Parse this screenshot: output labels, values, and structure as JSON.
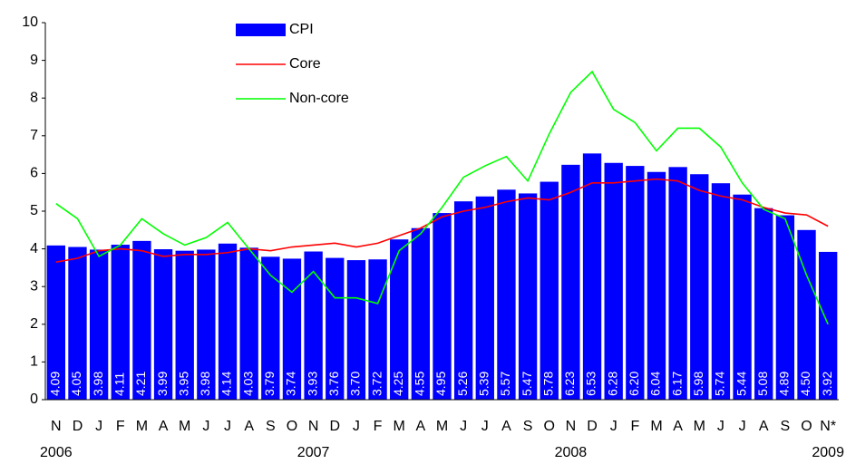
{
  "chart_data": {
    "type": "bar-line",
    "categories": [
      "N",
      "D",
      "J",
      "F",
      "M",
      "A",
      "M",
      "J",
      "J",
      "A",
      "S",
      "O",
      "N",
      "D",
      "J",
      "F",
      "M",
      "A",
      "M",
      "J",
      "J",
      "A",
      "S",
      "O",
      "N",
      "D",
      "J",
      "F",
      "M",
      "A",
      "M",
      "J",
      "J",
      "A",
      "S",
      "O",
      "N*"
    ],
    "year_labels": [
      "2006",
      null,
      null,
      null,
      null,
      null,
      null,
      null,
      null,
      null,
      null,
      null,
      "2007",
      null,
      null,
      null,
      null,
      null,
      null,
      null,
      null,
      null,
      null,
      null,
      "2008",
      null,
      null,
      null,
      null,
      null,
      null,
      null,
      null,
      null,
      null,
      null,
      "2009"
    ],
    "series": [
      {
        "name": "CPI",
        "type": "bar",
        "color": "#0000ff",
        "values": [
          4.09,
          4.05,
          3.98,
          4.11,
          4.21,
          3.99,
          3.95,
          3.98,
          4.14,
          4.03,
          3.79,
          3.74,
          3.93,
          3.76,
          3.7,
          3.72,
          4.25,
          4.55,
          4.95,
          5.26,
          5.39,
          5.57,
          5.47,
          5.78,
          6.23,
          6.53,
          6.28,
          6.2,
          6.04,
          6.17,
          5.98,
          5.74,
          5.44,
          5.08,
          4.89,
          4.5,
          3.92
        ],
        "value_labels": [
          "4.09",
          "4.05",
          "3.98",
          "4.11",
          "4.21",
          "3.99",
          "3.95",
          "3.98",
          "4.14",
          "4.03",
          "3.79",
          "3.74",
          "3.93",
          "3.76",
          "3.70",
          "3.72",
          "4.25",
          "4.55",
          "4.95",
          "5.26",
          "5.39",
          "5.57",
          "5.47",
          "5.78",
          "6.23",
          "6.53",
          "6.28",
          "6.20",
          "6.04",
          "6.17",
          "5.98",
          "5.74",
          "5.44",
          "5.08",
          "4.89",
          "4.50",
          "3.92"
        ]
      },
      {
        "name": "Core",
        "type": "line",
        "color": "#ff0000",
        "values": [
          3.65,
          3.75,
          3.95,
          4.0,
          3.95,
          3.8,
          3.85,
          3.85,
          3.9,
          4.0,
          3.95,
          4.05,
          4.1,
          4.15,
          4.05,
          4.15,
          4.35,
          4.55,
          4.85,
          5.0,
          5.1,
          5.25,
          5.35,
          5.3,
          5.5,
          5.75,
          5.75,
          5.8,
          5.85,
          5.8,
          5.55,
          5.4,
          5.3,
          5.1,
          4.95,
          4.9,
          4.6
        ]
      },
      {
        "name": "Non-core",
        "type": "line",
        "color": "#00ff00",
        "values": [
          5.2,
          4.8,
          3.8,
          4.1,
          4.8,
          4.4,
          4.1,
          4.3,
          4.7,
          4.0,
          3.3,
          2.85,
          3.4,
          2.7,
          2.7,
          2.55,
          3.95,
          4.4,
          5.1,
          5.9,
          6.2,
          6.45,
          5.8,
          7.05,
          8.15,
          8.7,
          7.7,
          7.35,
          6.6,
          7.2,
          7.2,
          6.7,
          5.75,
          5.05,
          4.8,
          3.3,
          2.0
        ]
      }
    ],
    "ylim": [
      0,
      10
    ],
    "yticks": [
      0,
      1,
      2,
      3,
      4,
      5,
      6,
      7,
      8,
      9,
      10
    ]
  }
}
